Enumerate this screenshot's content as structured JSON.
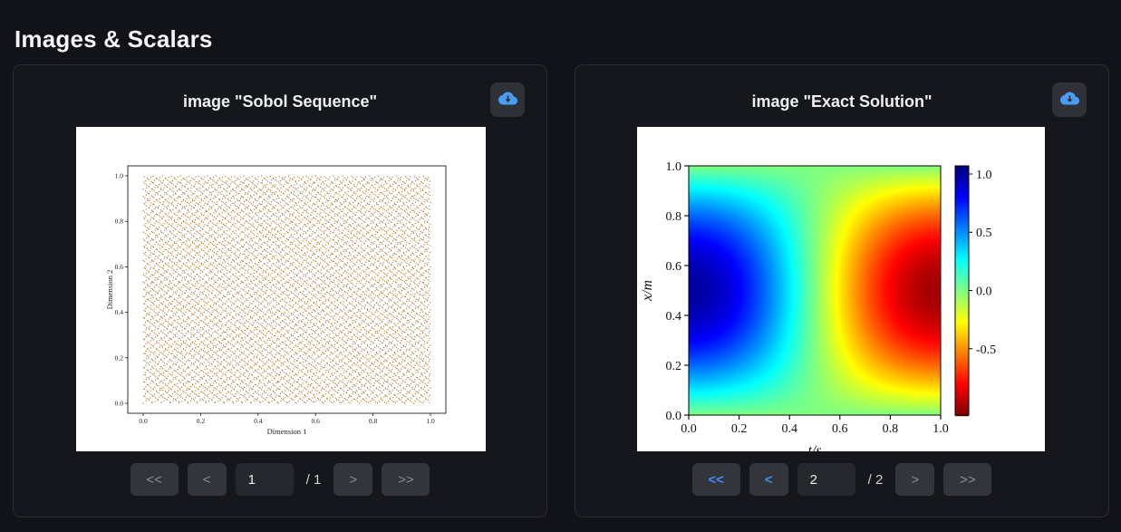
{
  "page": {
    "title": "Images & Scalars"
  },
  "colors": {
    "background": "#121318",
    "card_background": "#16171c",
    "card_border": "#2b2d33",
    "accent_blue": "#3f8ef7",
    "download_icon_blue": "#4a9df5",
    "button_background": "#33353a",
    "button_text_disabled": "#8b9096",
    "input_background": "#26282d",
    "scatter_point": "#b06f20"
  },
  "cards": [
    {
      "title": "image \"Sobol Sequence\"",
      "download_icon": "cloud-download",
      "pager": {
        "first_label": "<<",
        "prev_label": "<",
        "next_label": ">",
        "last_label": ">>",
        "page_value": "1",
        "total_label": "/ 1",
        "first_enabled": false,
        "prev_enabled": false,
        "next_enabled": false,
        "last_enabled": false
      }
    },
    {
      "title": "image \"Exact Solution\"",
      "download_icon": "cloud-download",
      "pager": {
        "first_label": "<<",
        "prev_label": "<",
        "next_label": ">",
        "last_label": ">>",
        "page_value": "2",
        "total_label": "/ 2",
        "first_enabled": true,
        "prev_enabled": true,
        "next_enabled": false,
        "last_enabled": false
      }
    }
  ],
  "chart_data": [
    {
      "type": "scatter",
      "title": "Sobol Sequence",
      "xlabel": "Dimension 1",
      "ylabel": "Dimension 2",
      "xlim": [
        0.0,
        1.0
      ],
      "ylim": [
        0.0,
        1.0
      ],
      "xticks": [
        0.0,
        0.2,
        0.4,
        0.6,
        0.8,
        1.0
      ],
      "yticks": [
        0.0,
        0.2,
        0.4,
        0.6,
        0.8,
        1.0
      ],
      "sampler": "sobol-2d",
      "num_points": 8192,
      "point_color": "#b06f20",
      "grid": false
    },
    {
      "type": "heatmap",
      "title": "Exact Solution",
      "xlabel": "t/s",
      "ylabel": "x/m",
      "xlim": [
        0.0,
        1.0
      ],
      "ylim": [
        0.0,
        1.0
      ],
      "xticks": [
        0.0,
        0.2,
        0.4,
        0.6,
        0.8,
        1.0
      ],
      "yticks": [
        0.0,
        0.2,
        0.4,
        0.6,
        0.8,
        1.0
      ],
      "value_function": "u(t,x) = sin(pi*x) * cos(pi*t)",
      "colormap": "jet-reversed",
      "vmin": -1.0,
      "vmax": 1.0,
      "colorbar_ticks": [
        1.0,
        0.5,
        0.0,
        -0.5
      ],
      "colorbar_position": "right",
      "grid_resolution": 160
    }
  ]
}
